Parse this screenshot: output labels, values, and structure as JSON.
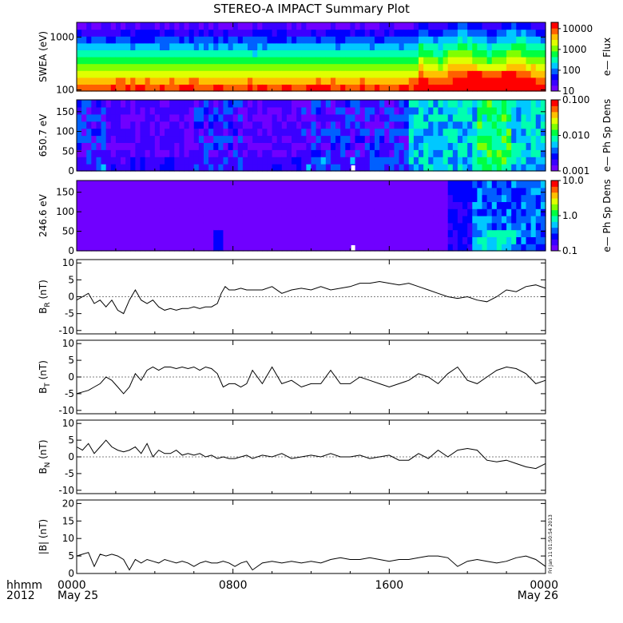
{
  "title": "STEREO-A IMPACT Summary Plot",
  "footer": {
    "left_line1": "hhmm",
    "left_line2": "2012",
    "stamp": "Fri Jan 11 01:50:54 2013"
  },
  "x_axis": {
    "range_hours": [
      0,
      24
    ],
    "ticks": [
      {
        "h": 0,
        "l1": "0000",
        "l2": "May 25"
      },
      {
        "h": 8,
        "l1": "0800",
        "l2": ""
      },
      {
        "h": 16,
        "l1": "1600",
        "l2": ""
      },
      {
        "h": 24,
        "l1": "0000",
        "l2": "May 26"
      }
    ]
  },
  "colors": {
    "cbar": [
      "#7000ff",
      "#3b00ff",
      "#0000ff",
      "#0060ff",
      "#00c8ff",
      "#00ffb0",
      "#00ff40",
      "#80ff00",
      "#e0ff00",
      "#ffc000",
      "#ff6000",
      "#ff0000"
    ]
  },
  "chart_data": [
    {
      "type": "heatmap",
      "name": "swea",
      "ylabel": "SWEA (eV)",
      "yscale": "log",
      "ylim": [
        95,
        1900
      ],
      "yticks": [
        {
          "v": 100,
          "l": "100"
        },
        {
          "v": 1000,
          "l": "1000"
        }
      ],
      "colorbar": {
        "label": "e— Flux",
        "scale": "log",
        "range": [
          10,
          20000
        ],
        "ticks": [
          {
            "v": 10,
            "l": "10"
          },
          {
            "v": 100,
            "l": "100"
          },
          {
            "v": 1000,
            "l": "1000"
          },
          {
            "v": 10000,
            "l": "10000"
          }
        ]
      }
    },
    {
      "type": "heatmap",
      "name": "pad650",
      "ylabel": "650.7 eV",
      "ylim": [
        0,
        180
      ],
      "yticks": [
        {
          "v": 0,
          "l": "0"
        },
        {
          "v": 50,
          "l": "50"
        },
        {
          "v": 100,
          "l": "100"
        },
        {
          "v": 150,
          "l": "150"
        }
      ],
      "colorbar": {
        "label": "e— Ph Sp Dens",
        "scale": "log",
        "range": [
          0.001,
          0.1
        ],
        "ticks": [
          {
            "v": 0.001,
            "l": "0.001"
          },
          {
            "v": 0.01,
            "l": "0.010"
          },
          {
            "v": 0.1,
            "l": "0.100"
          }
        ]
      }
    },
    {
      "type": "heatmap",
      "name": "pad246",
      "ylabel": "246.6 eV",
      "ylim": [
        0,
        180
      ],
      "yticks": [
        {
          "v": 0,
          "l": "0"
        },
        {
          "v": 50,
          "l": "50"
        },
        {
          "v": 100,
          "l": "100"
        },
        {
          "v": 150,
          "l": "150"
        }
      ],
      "colorbar": {
        "label": "e— Ph Sp Dens",
        "scale": "log",
        "range": [
          0.1,
          10
        ],
        "ticks": [
          {
            "v": 0.1,
            "l": "0.1"
          },
          {
            "v": 1,
            "l": "1.0"
          },
          {
            "v": 10,
            "l": "10.0"
          }
        ]
      }
    },
    {
      "type": "line",
      "name": "br",
      "ylabel": "B",
      "ysub": "R",
      "yunit": "(nT)",
      "ylim": [
        -11,
        11
      ],
      "yticks": [
        {
          "v": -10,
          "l": "-10"
        },
        {
          "v": -5,
          "l": "-5"
        },
        {
          "v": 0,
          "l": "0"
        },
        {
          "v": 5,
          "l": "5"
        },
        {
          "v": 10,
          "l": "10"
        }
      ],
      "x": [
        0,
        0.3,
        0.6,
        0.9,
        1.2,
        1.5,
        1.8,
        2.1,
        2.4,
        2.7,
        3.0,
        3.3,
        3.6,
        3.9,
        4.2,
        4.5,
        4.8,
        5.1,
        5.4,
        5.7,
        6.0,
        6.3,
        6.6,
        6.9,
        7.2,
        7.4,
        7.6,
        7.8,
        8.1,
        8.4,
        8.7,
        9.0,
        9.5,
        10.0,
        10.5,
        11.0,
        11.5,
        12.0,
        12.5,
        13.0,
        13.5,
        14.0,
        14.5,
        15.0,
        15.5,
        16.0,
        16.5,
        17.0,
        17.5,
        18.0,
        18.5,
        19.0,
        19.5,
        20.0,
        20.5,
        21.0,
        21.5,
        22.0,
        22.5,
        23.0,
        23.5,
        24.0
      ],
      "values": [
        -1,
        0,
        1,
        -2,
        -1,
        -3,
        -1,
        -4,
        -5,
        -1,
        2,
        -1,
        -2,
        -1,
        -3,
        -4,
        -3.5,
        -4,
        -3.5,
        -3.5,
        -3,
        -3.5,
        -3,
        -3,
        -2,
        1,
        3,
        2,
        2,
        2.5,
        2,
        2,
        2,
        3,
        1,
        2,
        2.5,
        2,
        3,
        2,
        2.5,
        3,
        4,
        4,
        4.5,
        4,
        3.5,
        4,
        3,
        2,
        1,
        0,
        -0.5,
        0,
        -1,
        -1.5,
        0,
        2,
        1.5,
        3,
        3.5,
        2.5
      ]
    },
    {
      "type": "line",
      "name": "bt",
      "ylabel": "B",
      "ysub": "T",
      "yunit": "(nT)",
      "ylim": [
        -11,
        11
      ],
      "yticks": [
        {
          "v": -10,
          "l": "-10"
        },
        {
          "v": -5,
          "l": "-5"
        },
        {
          "v": 0,
          "l": "0"
        },
        {
          "v": 5,
          "l": "5"
        },
        {
          "v": 10,
          "l": "10"
        }
      ],
      "x": [
        0,
        0.3,
        0.6,
        0.9,
        1.2,
        1.5,
        1.8,
        2.1,
        2.4,
        2.7,
        3.0,
        3.3,
        3.6,
        3.9,
        4.2,
        4.5,
        4.8,
        5.1,
        5.4,
        5.7,
        6.0,
        6.3,
        6.6,
        6.9,
        7.2,
        7.5,
        7.8,
        8.1,
        8.4,
        8.7,
        9.0,
        9.5,
        10.0,
        10.5,
        11.0,
        11.5,
        12.0,
        12.5,
        13.0,
        13.5,
        14.0,
        14.5,
        15.0,
        15.5,
        16.0,
        16.5,
        17.0,
        17.5,
        18.0,
        18.5,
        19.0,
        19.5,
        20.0,
        20.5,
        21.0,
        21.5,
        22.0,
        22.5,
        23.0,
        23.5,
        24.0
      ],
      "values": [
        -5,
        -4.5,
        -4,
        -3,
        -2,
        0,
        -1,
        -3,
        -5,
        -3,
        1,
        -1,
        2,
        3,
        2,
        3,
        3,
        2.5,
        3,
        2.5,
        3,
        2,
        3,
        2.5,
        1,
        -3,
        -2,
        -2,
        -3,
        -2,
        2,
        -2,
        3,
        -2,
        -1,
        -3,
        -2,
        -2,
        2,
        -2,
        -2,
        0,
        -1,
        -2,
        -3,
        -2,
        -1,
        1,
        0,
        -2,
        1,
        3,
        -1,
        -2,
        0,
        2,
        3,
        2.5,
        1,
        -2,
        -1
      ]
    },
    {
      "type": "line",
      "name": "bn",
      "ylabel": "B",
      "ysub": "N",
      "yunit": "(nT)",
      "ylim": [
        -11,
        11
      ],
      "yticks": [
        {
          "v": -10,
          "l": "-10"
        },
        {
          "v": -5,
          "l": "-5"
        },
        {
          "v": 0,
          "l": "0"
        },
        {
          "v": 5,
          "l": "5"
        },
        {
          "v": 10,
          "l": "10"
        }
      ],
      "x": [
        0,
        0.3,
        0.6,
        0.9,
        1.2,
        1.5,
        1.8,
        2.1,
        2.4,
        2.7,
        3.0,
        3.3,
        3.6,
        3.9,
        4.2,
        4.5,
        4.8,
        5.1,
        5.4,
        5.7,
        6.0,
        6.3,
        6.6,
        6.9,
        7.2,
        7.5,
        7.8,
        8.1,
        8.4,
        8.7,
        9.0,
        9.5,
        10.0,
        10.5,
        11.0,
        11.5,
        12.0,
        12.5,
        13.0,
        13.5,
        14.0,
        14.5,
        15.0,
        15.5,
        16.0,
        16.5,
        17.0,
        17.5,
        18.0,
        18.5,
        19.0,
        19.5,
        20.0,
        20.5,
        21.0,
        21.5,
        22.0,
        22.5,
        23.0,
        23.5,
        24.0
      ],
      "values": [
        3,
        2,
        4,
        1,
        3,
        5,
        3,
        2,
        1.5,
        2,
        3,
        1,
        4,
        0,
        2,
        1,
        1,
        2,
        0.5,
        1,
        0.5,
        1,
        0,
        0.5,
        -0.5,
        0,
        -0.5,
        -0.5,
        0,
        0.5,
        -0.5,
        0.5,
        0,
        1,
        -0.5,
        0,
        0.5,
        0,
        1,
        0,
        0,
        0.5,
        -0.5,
        0,
        0.5,
        -1,
        -1,
        1,
        -0.5,
        2,
        0,
        2,
        2.5,
        2,
        -1,
        -1.5,
        -1,
        -2,
        -3,
        -3.5,
        -2
      ]
    },
    {
      "type": "line",
      "name": "bmag",
      "ylabel": "|B|",
      "yunit": "(nT)",
      "ylim": [
        0,
        21
      ],
      "yticks": [
        {
          "v": 0,
          "l": "0"
        },
        {
          "v": 5,
          "l": "5"
        },
        {
          "v": 10,
          "l": "10"
        },
        {
          "v": 15,
          "l": "15"
        },
        {
          "v": 20,
          "l": "20"
        }
      ],
      "x": [
        0,
        0.3,
        0.6,
        0.9,
        1.2,
        1.5,
        1.8,
        2.1,
        2.4,
        2.7,
        3.0,
        3.3,
        3.6,
        3.9,
        4.2,
        4.5,
        4.8,
        5.1,
        5.4,
        5.7,
        6.0,
        6.3,
        6.6,
        6.9,
        7.2,
        7.5,
        7.8,
        8.1,
        8.4,
        8.7,
        9.0,
        9.5,
        10.0,
        10.5,
        11.0,
        11.5,
        12.0,
        12.5,
        13.0,
        13.5,
        14.0,
        14.5,
        15.0,
        15.5,
        16.0,
        16.5,
        17.0,
        17.5,
        18.0,
        18.5,
        19.0,
        19.5,
        20.0,
        20.5,
        21.0,
        21.5,
        22.0,
        22.5,
        23.0,
        23.5,
        24.0
      ],
      "values": [
        5,
        5.5,
        6,
        2,
        5.5,
        5,
        5.5,
        5,
        4,
        1,
        4,
        3,
        4,
        3.5,
        3,
        4,
        3.5,
        3,
        3.5,
        3,
        2,
        3,
        3.5,
        3,
        3,
        3.5,
        3,
        2,
        3,
        3.5,
        1,
        3,
        3.5,
        3,
        3.5,
        3,
        3.5,
        3,
        4,
        4.5,
        4,
        4,
        4.5,
        4,
        3.5,
        4,
        4,
        4.5,
        5,
        5,
        4.5,
        2,
        3.5,
        4,
        3.5,
        3,
        3.5,
        4.5,
        5,
        4,
        2
      ]
    }
  ]
}
